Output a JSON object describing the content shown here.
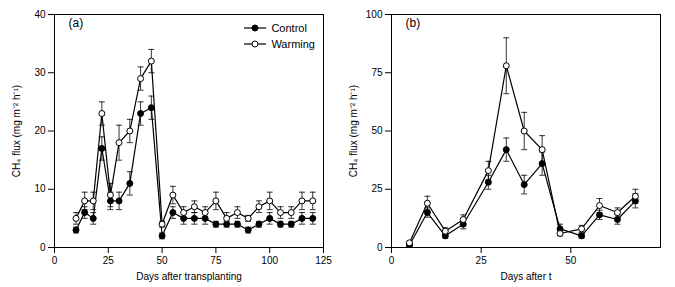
{
  "chart_data": [
    {
      "type": "line",
      "title": "(a)",
      "xlabel": "Days after transplanting",
      "ylabel": "CH₄ flux (mg m⁻² h⁻¹)",
      "xlim": [
        0,
        125
      ],
      "ylim": [
        0,
        40
      ],
      "xticks": [
        0,
        25,
        50,
        75,
        100,
        125
      ],
      "yticks": [
        0,
        10,
        20,
        30,
        40
      ],
      "grid": false,
      "legend": "upper right",
      "series": [
        {
          "name": "Control",
          "color": "#000000",
          "marker": "circle",
          "x": [
            10,
            14,
            18,
            22,
            26,
            30,
            35,
            40,
            45,
            50,
            55,
            60,
            65,
            70,
            75,
            80,
            85,
            90,
            95,
            100,
            105,
            110,
            115,
            120
          ],
          "values": [
            3,
            6,
            5,
            17,
            8,
            8,
            11,
            23,
            24,
            2,
            6,
            5,
            5,
            5,
            4,
            4,
            4,
            3,
            4,
            5,
            4,
            4,
            5,
            5
          ],
          "errors": [
            0.5,
            1,
            1,
            2,
            1.5,
            1.5,
            2,
            2,
            2,
            0.5,
            1,
            1,
            1,
            1,
            0.5,
            0.5,
            0.5,
            0.5,
            0.5,
            1,
            0.5,
            0.5,
            1,
            1
          ]
        },
        {
          "name": "Warming",
          "color": "#000000",
          "marker": "open circle",
          "x": [
            10,
            14,
            18,
            22,
            26,
            30,
            35,
            40,
            45,
            50,
            55,
            60,
            65,
            70,
            75,
            80,
            85,
            90,
            95,
            100,
            105,
            110,
            115,
            120
          ],
          "values": [
            5,
            8,
            8,
            23,
            9,
            18,
            20,
            29,
            32,
            4,
            9,
            6,
            7,
            6,
            8,
            5,
            6,
            5,
            7,
            8,
            6,
            6,
            8,
            8
          ],
          "errors": [
            1,
            1.5,
            1.5,
            2,
            2,
            3,
            2,
            2,
            2,
            0.5,
            1.5,
            1,
            1,
            1,
            1.5,
            1,
            1,
            0.5,
            1,
            1.5,
            1,
            1,
            1.5,
            1.5
          ]
        }
      ]
    },
    {
      "type": "line",
      "title": "(b)",
      "xlabel": "Days after t",
      "ylabel": "CH₄ flux (mg m⁻² h⁻¹)",
      "xlim": [
        0,
        75
      ],
      "ylim": [
        0,
        100
      ],
      "xticks": [
        0,
        25,
        50
      ],
      "yticks": [
        0,
        25,
        50,
        75,
        100
      ],
      "grid": false,
      "series": [
        {
          "name": "Control",
          "color": "#000000",
          "marker": "circle",
          "x": [
            5,
            10,
            15,
            20,
            27,
            32,
            37,
            42,
            47,
            53,
            58,
            63,
            68
          ],
          "values": [
            1,
            15,
            5,
            10,
            28,
            42,
            27,
            36,
            8,
            5,
            14,
            12,
            20
          ],
          "errors": [
            0.5,
            2,
            1,
            2,
            3,
            5,
            4,
            5,
            2,
            1,
            2,
            2,
            3
          ]
        },
        {
          "name": "Warming",
          "color": "#000000",
          "marker": "open circle",
          "x": [
            5,
            10,
            15,
            20,
            27,
            32,
            37,
            42,
            47,
            53,
            58,
            63,
            68
          ],
          "values": [
            2,
            19,
            7,
            12,
            33,
            78,
            50,
            42,
            6,
            8,
            18,
            15,
            22
          ],
          "errors": [
            0.5,
            3,
            1.5,
            2,
            4,
            12,
            8,
            6,
            1,
            1.5,
            3,
            2,
            3
          ]
        }
      ]
    }
  ]
}
